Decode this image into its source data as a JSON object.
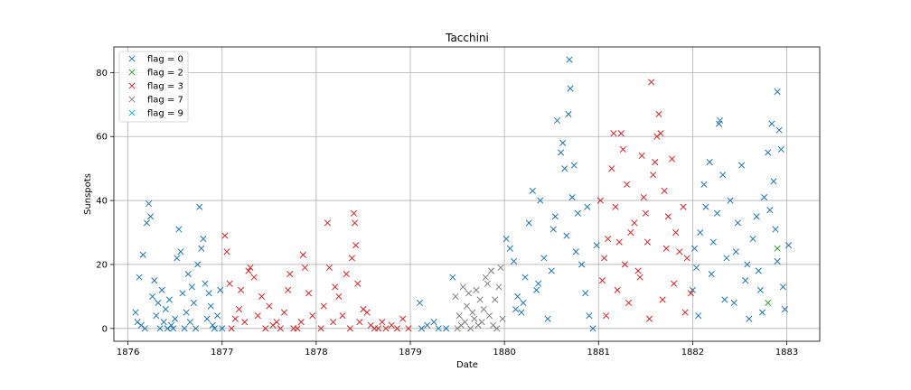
{
  "chart_data": {
    "type": "scatter",
    "title": "Tacchini",
    "xlabel": "Date",
    "ylabel": "Sunspots",
    "xlim": [
      1875.85,
      1883.35
    ],
    "ylim": [
      -4,
      88
    ],
    "x_ticks": [
      1876,
      1877,
      1878,
      1879,
      1880,
      1881,
      1882,
      1883
    ],
    "x_tick_labels": [
      "1876",
      "1877",
      "1878",
      "1879",
      "1880",
      "1881",
      "1882",
      "1883"
    ],
    "y_ticks": [
      0,
      20,
      40,
      60,
      80
    ],
    "y_tick_labels": [
      "0",
      "20",
      "40",
      "60",
      "80"
    ],
    "grid": true,
    "legend_position": "upper-left",
    "marker": "x",
    "series": [
      {
        "name": "flag = 0",
        "color": "#1f77b4",
        "points": [
          [
            1876.08,
            5
          ],
          [
            1876.1,
            2
          ],
          [
            1876.12,
            16
          ],
          [
            1876.14,
            1
          ],
          [
            1876.16,
            23
          ],
          [
            1876.18,
            0
          ],
          [
            1876.2,
            33
          ],
          [
            1876.22,
            39
          ],
          [
            1876.24,
            35
          ],
          [
            1876.26,
            10
          ],
          [
            1876.28,
            15
          ],
          [
            1876.3,
            4
          ],
          [
            1876.32,
            8
          ],
          [
            1876.34,
            0
          ],
          [
            1876.36,
            12
          ],
          [
            1876.38,
            2
          ],
          [
            1876.4,
            6
          ],
          [
            1876.42,
            0
          ],
          [
            1876.44,
            9
          ],
          [
            1876.46,
            1
          ],
          [
            1876.48,
            0
          ],
          [
            1876.5,
            3
          ],
          [
            1876.52,
            22
          ],
          [
            1876.54,
            31
          ],
          [
            1876.56,
            24
          ],
          [
            1876.58,
            11
          ],
          [
            1876.6,
            0
          ],
          [
            1876.62,
            5
          ],
          [
            1876.64,
            17
          ],
          [
            1876.66,
            2
          ],
          [
            1876.68,
            13
          ],
          [
            1876.7,
            8
          ],
          [
            1876.72,
            0
          ],
          [
            1876.74,
            20
          ],
          [
            1876.76,
            38
          ],
          [
            1876.78,
            25
          ],
          [
            1876.8,
            28
          ],
          [
            1876.82,
            14
          ],
          [
            1876.84,
            3
          ],
          [
            1876.86,
            11
          ],
          [
            1876.88,
            7
          ],
          [
            1876.9,
            1
          ],
          [
            1876.92,
            0
          ],
          [
            1876.95,
            4
          ],
          [
            1876.98,
            12
          ],
          [
            1877.0,
            0
          ],
          [
            1879.1,
            8
          ],
          [
            1879.12,
            0
          ],
          [
            1879.18,
            1
          ],
          [
            1879.25,
            2
          ],
          [
            1879.3,
            0
          ],
          [
            1879.38,
            0
          ],
          [
            1879.45,
            16
          ],
          [
            1880.02,
            28
          ],
          [
            1880.06,
            25
          ],
          [
            1880.1,
            21
          ],
          [
            1880.14,
            10
          ],
          [
            1880.18,
            5
          ],
          [
            1880.22,
            16
          ],
          [
            1880.26,
            33
          ],
          [
            1880.3,
            43
          ],
          [
            1880.34,
            12
          ],
          [
            1880.38,
            40
          ],
          [
            1880.42,
            22
          ],
          [
            1880.46,
            3
          ],
          [
            1880.5,
            18
          ],
          [
            1880.54,
            35
          ],
          [
            1880.56,
            65
          ],
          [
            1880.6,
            55
          ],
          [
            1880.62,
            58
          ],
          [
            1880.64,
            50
          ],
          [
            1880.66,
            29
          ],
          [
            1880.68,
            67
          ],
          [
            1880.69,
            84
          ],
          [
            1880.7,
            75
          ],
          [
            1880.72,
            41
          ],
          [
            1880.74,
            51
          ],
          [
            1880.78,
            36
          ],
          [
            1880.82,
            20
          ],
          [
            1880.86,
            11
          ],
          [
            1880.9,
            4
          ],
          [
            1880.94,
            0
          ],
          [
            1880.98,
            26
          ],
          [
            1880.2,
            8
          ],
          [
            1880.36,
            14
          ],
          [
            1880.52,
            31
          ],
          [
            1880.76,
            24
          ],
          [
            1880.88,
            38
          ],
          [
            1880.12,
            6
          ],
          [
            1882.0,
            12
          ],
          [
            1882.04,
            19
          ],
          [
            1882.08,
            30
          ],
          [
            1882.12,
            45
          ],
          [
            1882.14,
            38
          ],
          [
            1882.18,
            52
          ],
          [
            1882.22,
            27
          ],
          [
            1882.26,
            36
          ],
          [
            1882.28,
            64
          ],
          [
            1882.29,
            65
          ],
          [
            1882.32,
            48
          ],
          [
            1882.36,
            22
          ],
          [
            1882.4,
            40
          ],
          [
            1882.44,
            8
          ],
          [
            1882.48,
            33
          ],
          [
            1882.52,
            51
          ],
          [
            1882.56,
            15
          ],
          [
            1882.6,
            3
          ],
          [
            1882.64,
            28
          ],
          [
            1882.68,
            35
          ],
          [
            1882.72,
            12
          ],
          [
            1882.76,
            41
          ],
          [
            1882.8,
            55
          ],
          [
            1882.84,
            64
          ],
          [
            1882.86,
            46
          ],
          [
            1882.88,
            31
          ],
          [
            1882.9,
            74
          ],
          [
            1882.92,
            62
          ],
          [
            1882.94,
            56
          ],
          [
            1882.96,
            13
          ],
          [
            1882.98,
            6
          ],
          [
            1883.02,
            26
          ],
          [
            1882.06,
            4
          ],
          [
            1882.2,
            17
          ],
          [
            1882.34,
            9
          ],
          [
            1882.46,
            24
          ],
          [
            1882.58,
            20
          ],
          [
            1882.7,
            18
          ],
          [
            1882.82,
            37
          ],
          [
            1882.74,
            5
          ],
          [
            1882.9,
            21
          ],
          [
            1882.02,
            25
          ]
        ]
      },
      {
        "name": "flag = 2",
        "color": "#2ca02c",
        "points": [
          [
            1882.8,
            8
          ],
          [
            1882.9,
            25
          ]
        ]
      },
      {
        "name": "flag = 3",
        "color": "#d62728",
        "points": [
          [
            1877.03,
            29
          ],
          [
            1877.05,
            24
          ],
          [
            1877.08,
            14
          ],
          [
            1877.1,
            0
          ],
          [
            1877.14,
            3
          ],
          [
            1877.18,
            6
          ],
          [
            1877.2,
            12
          ],
          [
            1877.24,
            2
          ],
          [
            1877.28,
            18
          ],
          [
            1877.3,
            19
          ],
          [
            1877.34,
            16
          ],
          [
            1877.38,
            4
          ],
          [
            1877.42,
            10
          ],
          [
            1877.46,
            0
          ],
          [
            1877.5,
            7
          ],
          [
            1877.54,
            1
          ],
          [
            1877.58,
            2
          ],
          [
            1877.62,
            0
          ],
          [
            1877.66,
            5
          ],
          [
            1877.7,
            12
          ],
          [
            1877.72,
            17
          ],
          [
            1877.76,
            0
          ],
          [
            1877.8,
            0
          ],
          [
            1877.84,
            2
          ],
          [
            1877.86,
            23
          ],
          [
            1877.88,
            19
          ],
          [
            1877.92,
            11
          ],
          [
            1877.96,
            4
          ],
          [
            1878.05,
            0
          ],
          [
            1878.08,
            7
          ],
          [
            1878.12,
            33
          ],
          [
            1878.14,
            19
          ],
          [
            1878.18,
            2
          ],
          [
            1878.2,
            13
          ],
          [
            1878.24,
            10
          ],
          [
            1878.28,
            4
          ],
          [
            1878.32,
            17
          ],
          [
            1878.36,
            0
          ],
          [
            1878.38,
            22
          ],
          [
            1878.4,
            36
          ],
          [
            1878.41,
            33
          ],
          [
            1878.42,
            26
          ],
          [
            1878.44,
            14
          ],
          [
            1878.46,
            2
          ],
          [
            1878.5,
            6
          ],
          [
            1878.54,
            5
          ],
          [
            1878.58,
            1
          ],
          [
            1878.62,
            0
          ],
          [
            1878.66,
            0
          ],
          [
            1878.7,
            2
          ],
          [
            1878.74,
            0
          ],
          [
            1878.8,
            1
          ],
          [
            1878.86,
            0
          ],
          [
            1878.92,
            3
          ],
          [
            1878.98,
            0
          ],
          [
            1881.02,
            40
          ],
          [
            1881.06,
            22
          ],
          [
            1881.1,
            28
          ],
          [
            1881.14,
            50
          ],
          [
            1881.16,
            61
          ],
          [
            1881.18,
            38
          ],
          [
            1881.22,
            27
          ],
          [
            1881.24,
            61
          ],
          [
            1881.26,
            56
          ],
          [
            1881.3,
            45
          ],
          [
            1881.34,
            30
          ],
          [
            1881.38,
            33
          ],
          [
            1881.42,
            18
          ],
          [
            1881.46,
            54
          ],
          [
            1881.48,
            41
          ],
          [
            1881.5,
            36
          ],
          [
            1881.52,
            27
          ],
          [
            1881.56,
            77
          ],
          [
            1881.58,
            48
          ],
          [
            1881.6,
            52
          ],
          [
            1881.62,
            60
          ],
          [
            1881.64,
            67
          ],
          [
            1881.66,
            61
          ],
          [
            1881.7,
            43
          ],
          [
            1881.74,
            35
          ],
          [
            1881.78,
            53
          ],
          [
            1881.82,
            30
          ],
          [
            1881.86,
            24
          ],
          [
            1881.9,
            38
          ],
          [
            1881.94,
            22
          ],
          [
            1881.98,
            11
          ],
          [
            1881.08,
            4
          ],
          [
            1881.2,
            12
          ],
          [
            1881.32,
            8
          ],
          [
            1881.44,
            16
          ],
          [
            1881.54,
            3
          ],
          [
            1881.68,
            9
          ],
          [
            1881.8,
            14
          ],
          [
            1881.92,
            5
          ],
          [
            1881.04,
            15
          ],
          [
            1881.28,
            20
          ],
          [
            1881.72,
            25
          ]
        ]
      },
      {
        "name": "flag = 7",
        "color": "#7f7f7f",
        "points": [
          [
            1879.48,
            10
          ],
          [
            1879.5,
            0
          ],
          [
            1879.52,
            4
          ],
          [
            1879.54,
            1
          ],
          [
            1879.56,
            13
          ],
          [
            1879.58,
            2
          ],
          [
            1879.6,
            7
          ],
          [
            1879.62,
            11
          ],
          [
            1879.64,
            0
          ],
          [
            1879.66,
            5
          ],
          [
            1879.68,
            3
          ],
          [
            1879.7,
            12
          ],
          [
            1879.72,
            1
          ],
          [
            1879.74,
            9
          ],
          [
            1879.76,
            2
          ],
          [
            1879.78,
            6
          ],
          [
            1879.8,
            16
          ],
          [
            1879.82,
            14
          ],
          [
            1879.84,
            4
          ],
          [
            1879.86,
            18
          ],
          [
            1879.88,
            1
          ],
          [
            1879.9,
            9
          ],
          [
            1879.92,
            0
          ],
          [
            1879.94,
            13
          ],
          [
            1879.96,
            19
          ],
          [
            1879.98,
            3
          ]
        ]
      },
      {
        "name": "flag = 9",
        "color": "#17becf",
        "points": []
      }
    ]
  }
}
